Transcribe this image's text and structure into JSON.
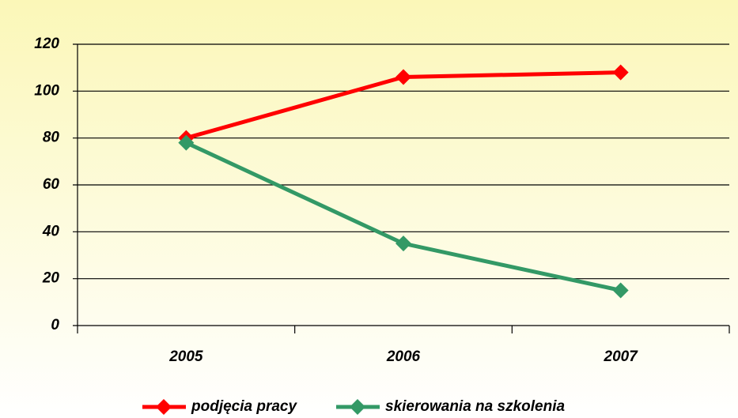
{
  "chart_data": {
    "type": "line",
    "categories": [
      "2005",
      "2006",
      "2007"
    ],
    "series": [
      {
        "name": "podjęcia pracy",
        "color": "#ff0000",
        "values": [
          80,
          106,
          108
        ]
      },
      {
        "name": "skierowania na szkolenia",
        "color": "#339966",
        "values": [
          78,
          35,
          15
        ]
      }
    ],
    "ylim": [
      0,
      120
    ],
    "yticks": [
      0,
      20,
      40,
      60,
      80,
      100,
      120
    ],
    "grid": true,
    "legend": "bottom"
  }
}
